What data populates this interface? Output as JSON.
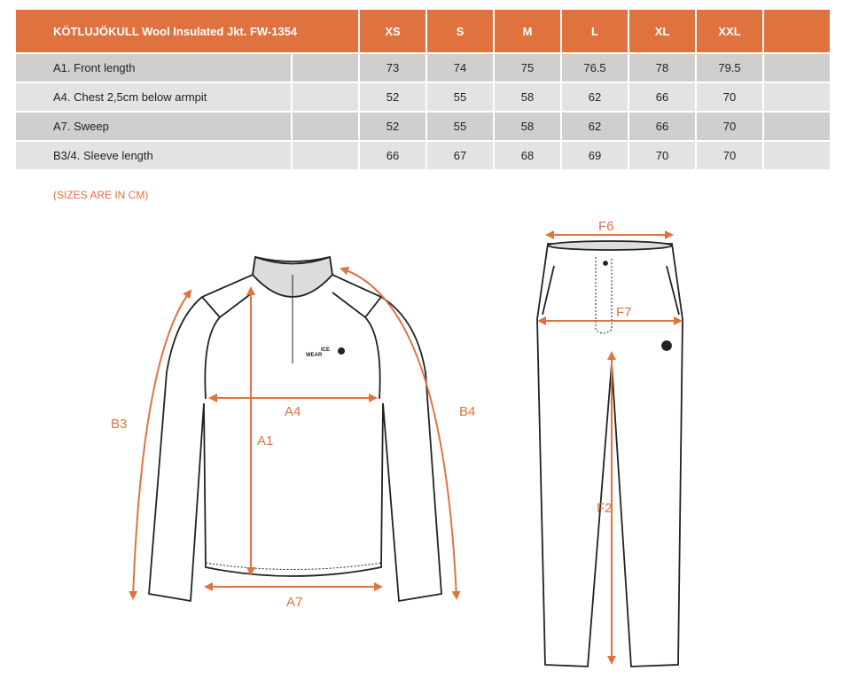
{
  "table": {
    "title": "KÖTLUJÖKULL Wool Insulated Jkt. FW-1354",
    "sizes": [
      "XS",
      "S",
      "M",
      "L",
      "XL",
      "XXL",
      ""
    ],
    "rows": [
      {
        "label": "A1. Front length",
        "values": [
          "73",
          "74",
          "75",
          "76.5",
          "78",
          "79.5",
          ""
        ]
      },
      {
        "label": "A4. Chest 2,5cm below armpit",
        "values": [
          "52",
          "55",
          "58",
          "62",
          "66",
          "70",
          ""
        ]
      },
      {
        "label": "A7. Sweep",
        "values": [
          "52",
          "55",
          "58",
          "62",
          "66",
          "70",
          ""
        ]
      },
      {
        "label": "B3/4. Sleeve length",
        "values": [
          "66",
          "67",
          "68",
          "69",
          "70",
          "70",
          ""
        ]
      }
    ]
  },
  "note": "(SIZES ARE IN CM)",
  "diagram": {
    "jacket_labels": {
      "a1": "A1",
      "a4": "A4",
      "a7": "A7",
      "b3": "B3",
      "b4": "B4"
    },
    "pants_labels": {
      "f2": "F2",
      "f6": "F6",
      "f7": "F7"
    },
    "logo": "ICE WEAR",
    "accent": "#e07240"
  }
}
